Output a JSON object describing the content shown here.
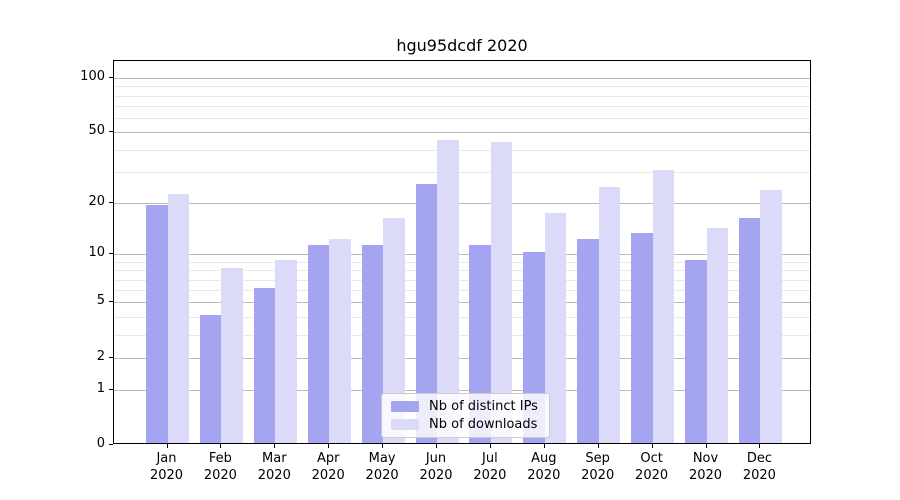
{
  "chart_data": {
    "type": "bar",
    "title": "hgu95dcdf 2020",
    "categories": [
      "Jan",
      "Feb",
      "Mar",
      "Apr",
      "May",
      "Jun",
      "Jul",
      "Aug",
      "Sep",
      "Oct",
      "Nov",
      "Dec"
    ],
    "x_tick_year": "2020",
    "series": [
      {
        "name": "Nb of distinct IPs",
        "color": "#a4a4f0",
        "values": [
          19,
          4,
          6,
          11,
          11,
          25,
          11,
          10,
          12,
          13,
          9,
          16
        ]
      },
      {
        "name": "Nb of downloads",
        "color": "#dbdbf9",
        "values": [
          22,
          8,
          9,
          12,
          16,
          44,
          43,
          17,
          24,
          30,
          14,
          23
        ]
      }
    ],
    "xlabel": "",
    "ylabel": "",
    "yscale": "log1p",
    "ylim": [
      0,
      124
    ],
    "y_major_ticks": [
      0,
      1,
      2,
      5,
      10,
      20,
      50,
      100
    ],
    "y_minor_ticks": [
      3,
      4,
      6,
      7,
      8,
      9,
      30,
      40,
      60,
      70,
      80,
      90
    ],
    "grid": true,
    "legend_position": "inside-bottom-center"
  }
}
